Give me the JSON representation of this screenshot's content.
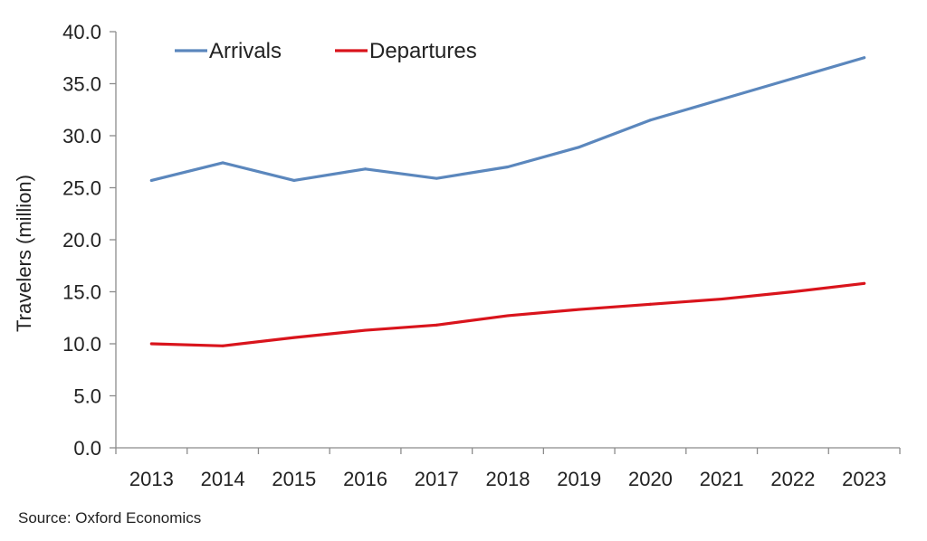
{
  "chart_data": {
    "type": "line",
    "categories": [
      "2013",
      "2014",
      "2015",
      "2016",
      "2017",
      "2018",
      "2019",
      "2020",
      "2021",
      "2022",
      "2023"
    ],
    "series": [
      {
        "name": "Arrivals",
        "color": "#5b87bd",
        "values": [
          25.7,
          27.4,
          25.7,
          26.8,
          25.9,
          27.0,
          28.9,
          31.5,
          33.5,
          35.5,
          37.5
        ]
      },
      {
        "name": "Departures",
        "color": "#d9141c",
        "values": [
          10.0,
          9.8,
          10.6,
          11.3,
          11.8,
          12.7,
          13.3,
          13.8,
          14.3,
          15.0,
          15.8
        ]
      }
    ],
    "ylabel": "Travelers (million)",
    "xlabel": "",
    "ylim": [
      0,
      40
    ],
    "yticks": [
      "0.0",
      "5.0",
      "10.0",
      "15.0",
      "20.0",
      "25.0",
      "30.0",
      "35.0",
      "40.0"
    ],
    "grid": false,
    "legend": "top-left"
  },
  "source": "Source: Oxford Economics"
}
